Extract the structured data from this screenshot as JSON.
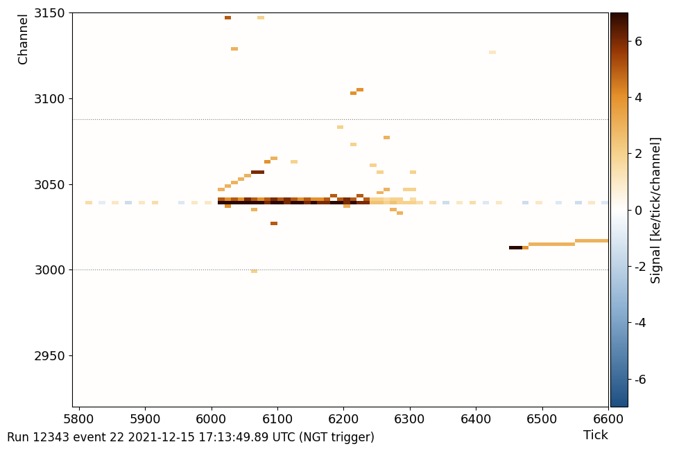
{
  "chart_data": {
    "type": "heatmap",
    "x_label": "Tick",
    "y_label": "Channel",
    "footer": "Run 12343 event 22 2021-12-15 17:13:49.89 UTC (NGT trigger)",
    "xlim": [
      5790,
      6600
    ],
    "xticks": [
      5800,
      5900,
      6000,
      6100,
      6200,
      6300,
      6400,
      6500,
      6600
    ],
    "ylim": [
      2920,
      3150
    ],
    "yticks": [
      2950,
      3000,
      3050,
      3100,
      3150
    ],
    "boundaries": [
      3000,
      3088
    ],
    "cell_ticks": 10,
    "cell_channels": 2,
    "colorbar": {
      "label": "Signal [ke/tick/channel]",
      "range": [
        -7,
        7
      ],
      "ticks": [
        -6,
        -4,
        -2,
        0,
        2,
        4,
        6
      ]
    },
    "cells": [
      [
        6010,
        3038,
        7
      ],
      [
        6020,
        3038,
        7
      ],
      [
        6030,
        3038,
        7
      ],
      [
        6040,
        3038,
        7
      ],
      [
        6050,
        3038,
        7
      ],
      [
        6060,
        3038,
        7
      ],
      [
        6070,
        3038,
        7
      ],
      [
        6080,
        3038,
        6
      ],
      [
        6090,
        3038,
        7
      ],
      [
        6100,
        3038,
        7
      ],
      [
        6110,
        3038,
        6
      ],
      [
        6120,
        3038,
        7
      ],
      [
        6130,
        3038,
        7
      ],
      [
        6140,
        3038,
        6
      ],
      [
        6150,
        3038,
        7
      ],
      [
        6160,
        3038,
        6
      ],
      [
        6170,
        3038,
        6
      ],
      [
        6180,
        3038,
        7
      ],
      [
        6190,
        3038,
        7
      ],
      [
        6200,
        3038,
        6
      ],
      [
        6210,
        3038,
        7
      ],
      [
        6220,
        3038,
        6
      ],
      [
        6230,
        3038,
        6
      ],
      [
        6010,
        3040,
        5
      ],
      [
        6020,
        3040,
        4
      ],
      [
        6030,
        3040,
        5
      ],
      [
        6040,
        3040,
        4
      ],
      [
        6050,
        3040,
        6
      ],
      [
        6060,
        3040,
        5
      ],
      [
        6070,
        3040,
        4
      ],
      [
        6080,
        3040,
        5
      ],
      [
        6090,
        3040,
        6
      ],
      [
        6100,
        3040,
        5
      ],
      [
        6110,
        3040,
        6
      ],
      [
        6120,
        3040,
        5
      ],
      [
        6130,
        3040,
        4
      ],
      [
        6140,
        3040,
        5
      ],
      [
        6150,
        3040,
        4
      ],
      [
        6160,
        3040,
        4
      ],
      [
        6170,
        3040,
        5
      ],
      [
        6190,
        3040,
        5
      ],
      [
        6200,
        3040,
        6
      ],
      [
        6210,
        3040,
        5
      ],
      [
        6230,
        3040,
        5
      ],
      [
        6240,
        3038,
        2.5
      ],
      [
        6250,
        3038,
        2.5
      ],
      [
        6260,
        3038,
        2
      ],
      [
        6270,
        3038,
        2.5
      ],
      [
        6280,
        3038,
        2
      ],
      [
        6290,
        3038,
        2
      ],
      [
        6300,
        3038,
        2
      ],
      [
        6310,
        3038,
        1.5
      ],
      [
        6240,
        3040,
        2
      ],
      [
        6250,
        3040,
        2
      ],
      [
        6260,
        3040,
        1.5
      ],
      [
        6270,
        3040,
        2
      ],
      [
        6280,
        3040,
        2
      ],
      [
        6300,
        3040,
        1.5
      ],
      [
        6010,
        3046,
        3
      ],
      [
        6020,
        3048,
        3
      ],
      [
        6030,
        3050,
        3
      ],
      [
        6040,
        3052,
        3
      ],
      [
        6050,
        3054,
        3
      ],
      [
        6060,
        3056,
        6
      ],
      [
        6070,
        3056,
        6
      ],
      [
        6080,
        3062,
        4
      ],
      [
        6090,
        3064,
        3
      ],
      [
        6120,
        3062,
        2
      ],
      [
        6090,
        3026,
        5
      ],
      [
        6020,
        3036,
        4
      ],
      [
        6060,
        3034,
        3
      ],
      [
        6200,
        3036,
        3
      ],
      [
        6270,
        3034,
        3
      ],
      [
        6280,
        3032,
        3
      ],
      [
        6180,
        3042,
        5
      ],
      [
        6220,
        3042,
        5
      ],
      [
        6250,
        3044,
        3
      ],
      [
        6260,
        3046,
        3
      ],
      [
        6290,
        3046,
        2
      ],
      [
        6300,
        3046,
        2
      ],
      [
        6210,
        3102,
        4
      ],
      [
        6220,
        3104,
        4
      ],
      [
        6020,
        3146,
        5
      ],
      [
        6030,
        3128,
        3
      ],
      [
        6070,
        3146,
        2
      ],
      [
        6260,
        3076,
        3
      ],
      [
        6210,
        3072,
        2
      ],
      [
        6240,
        3060,
        2
      ],
      [
        6300,
        3056,
        2
      ],
      [
        6250,
        3056,
        2
      ],
      [
        6190,
        3082,
        2
      ],
      [
        6060,
        2998,
        2
      ],
      [
        6420,
        3126,
        1
      ],
      [
        6450,
        3012,
        7
      ],
      [
        6460,
        3012,
        7
      ],
      [
        6470,
        3012,
        4
      ],
      [
        6480,
        3014,
        3
      ],
      [
        6490,
        3014,
        3
      ],
      [
        6500,
        3014,
        3
      ],
      [
        6510,
        3014,
        3
      ],
      [
        6520,
        3014,
        3
      ],
      [
        6530,
        3014,
        3
      ],
      [
        6540,
        3014,
        3
      ],
      [
        6550,
        3016,
        3
      ],
      [
        6560,
        3016,
        3
      ],
      [
        6570,
        3016,
        3
      ],
      [
        6580,
        3016,
        3
      ],
      [
        6590,
        3016,
        3
      ],
      [
        5810,
        3038,
        1.5
      ],
      [
        5830,
        3038,
        -0.8
      ],
      [
        5850,
        3038,
        1
      ],
      [
        5870,
        3038,
        -1.5
      ],
      [
        5890,
        3038,
        1
      ],
      [
        5910,
        3038,
        1.5
      ],
      [
        5950,
        3038,
        -1
      ],
      [
        5970,
        3038,
        1
      ],
      [
        5990,
        3038,
        1
      ],
      [
        6330,
        3038,
        1.5
      ],
      [
        6350,
        3038,
        -1.5
      ],
      [
        6370,
        3038,
        1
      ],
      [
        6390,
        3038,
        1.5
      ],
      [
        6410,
        3038,
        -1
      ],
      [
        6430,
        3038,
        1
      ],
      [
        6470,
        3038,
        -1.5
      ],
      [
        6490,
        3038,
        1
      ],
      [
        6520,
        3038,
        -1
      ],
      [
        6550,
        3038,
        -1.5
      ],
      [
        6570,
        3038,
        1
      ],
      [
        6590,
        3038,
        -1
      ]
    ]
  }
}
